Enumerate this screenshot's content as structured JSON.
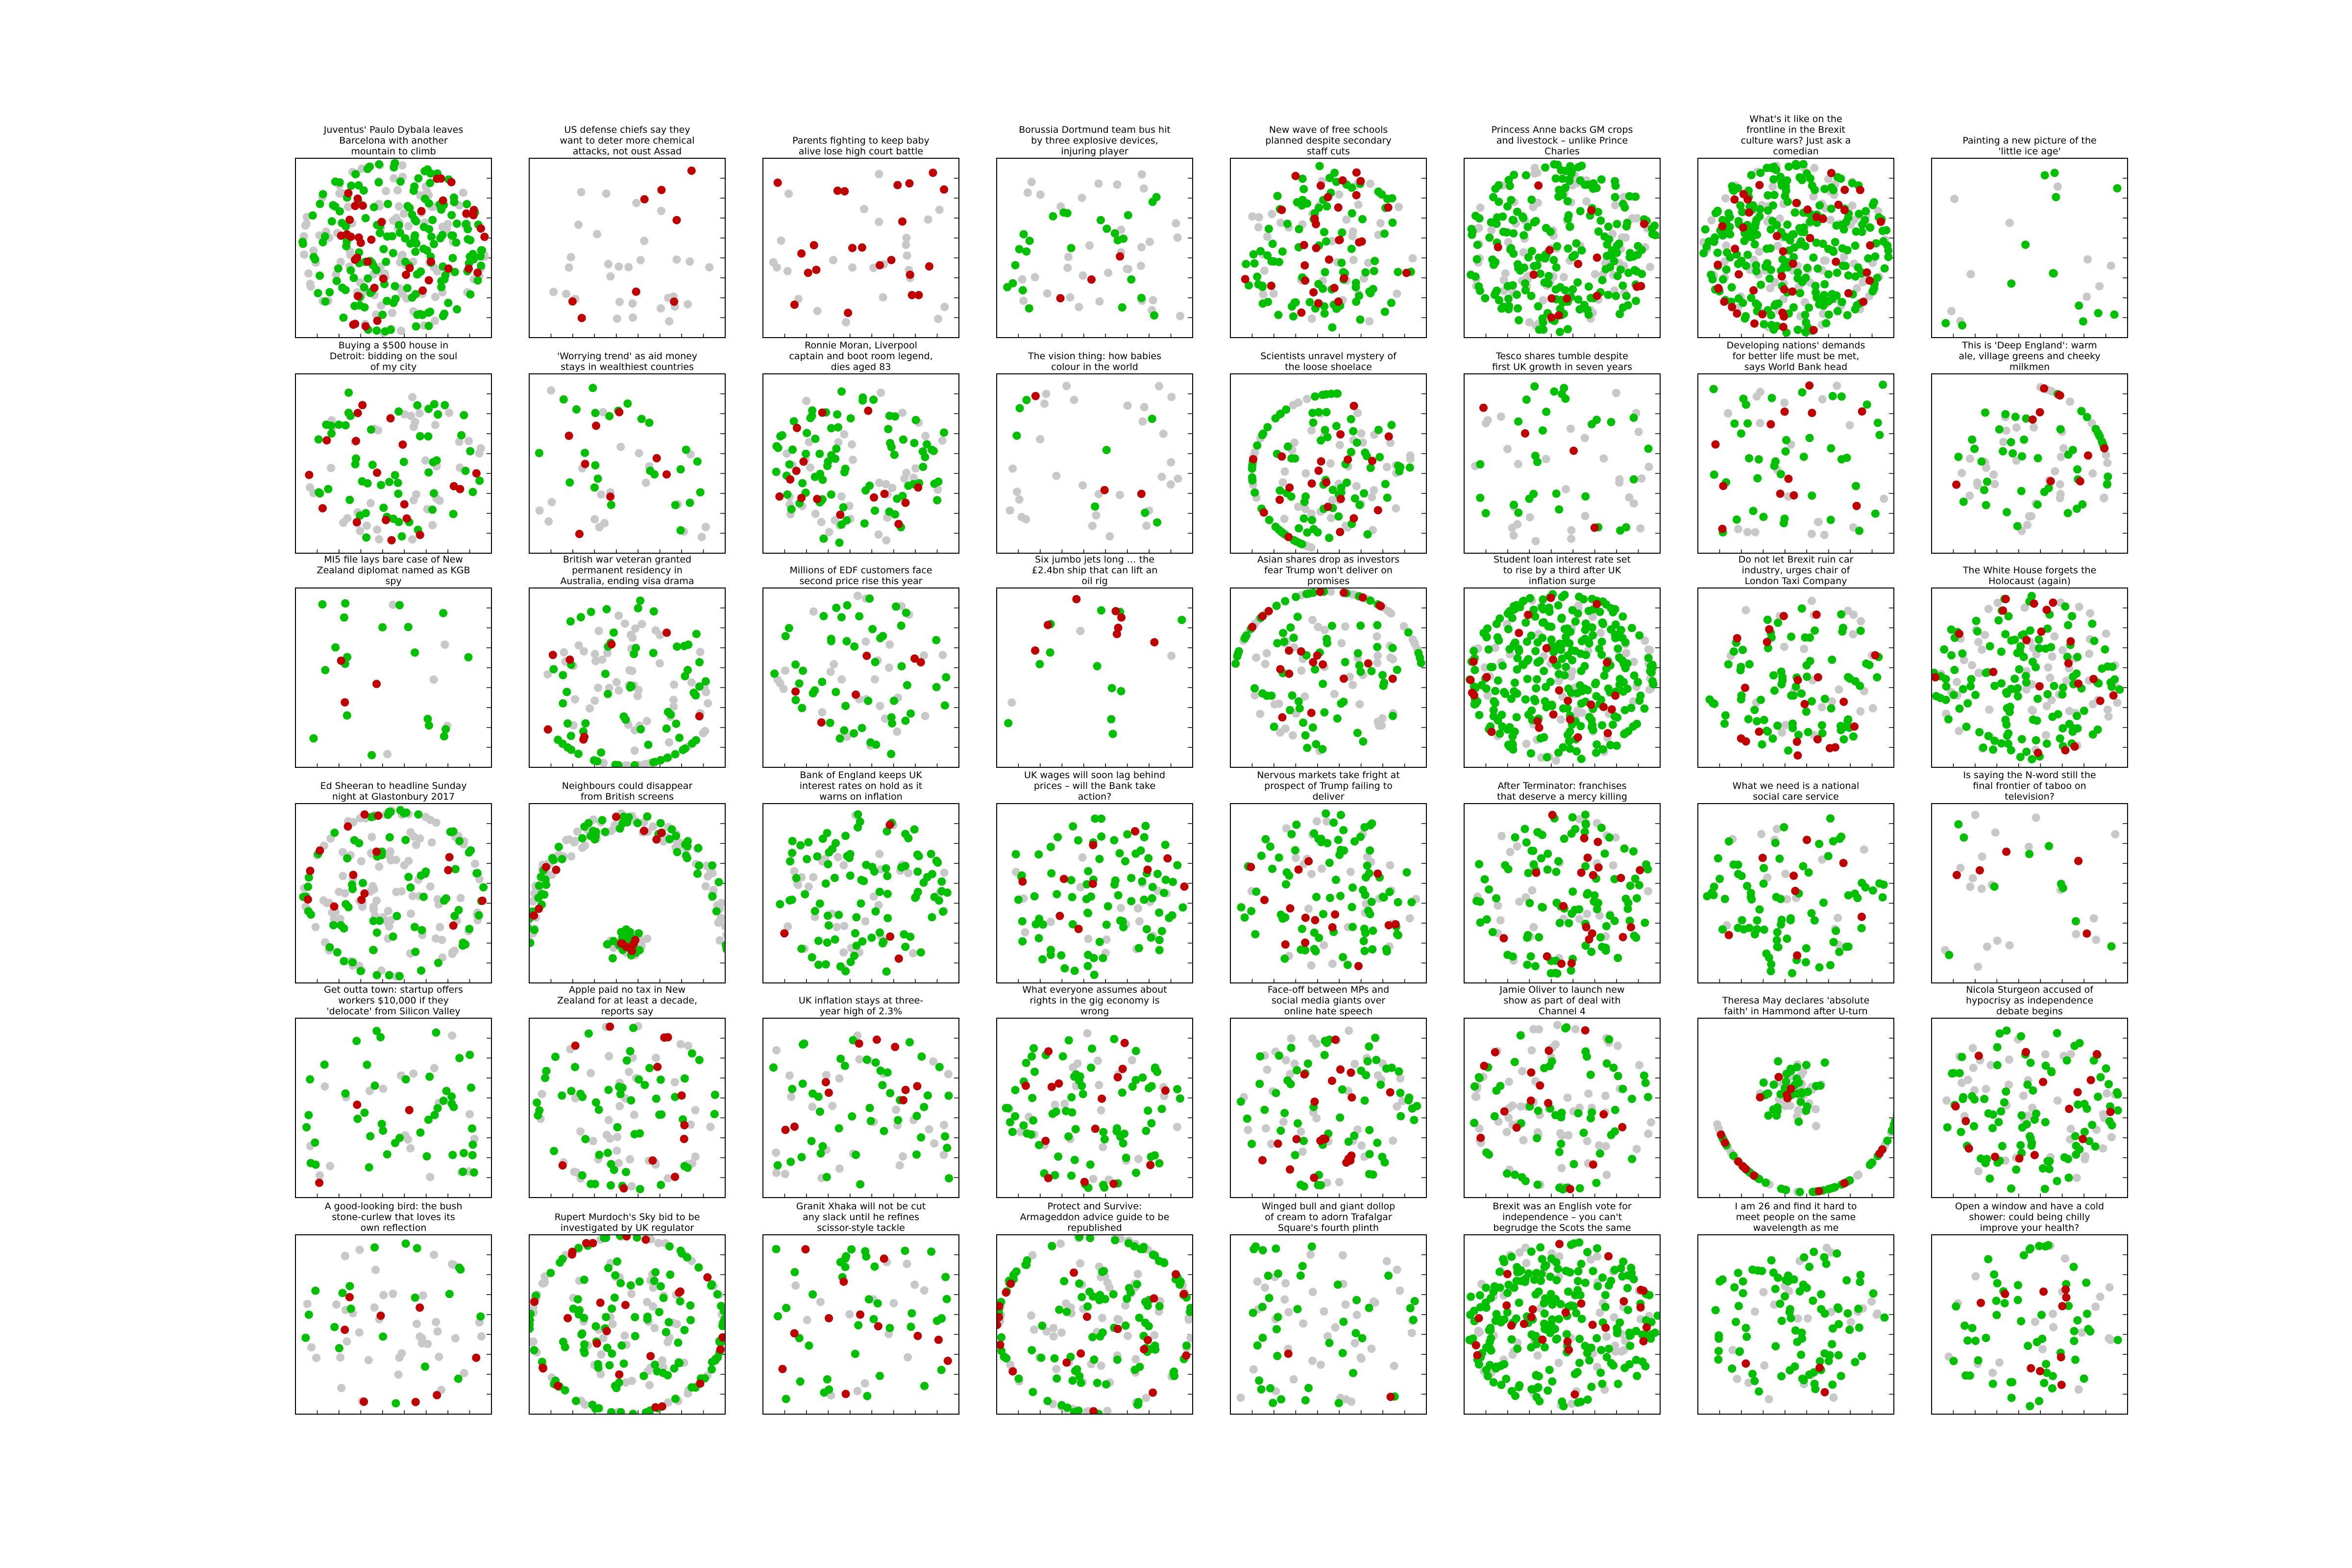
{
  "colors": {
    "positive": "#00c000",
    "negative": "#c00000",
    "neutral": "#c8c8c8"
  },
  "chart_data": {
    "type": "scatter",
    "grid": false,
    "panels": [
      {
        "title": [
          "Juventus' Paulo Dybala leaves",
          "Barcelona with another",
          "mountain to climb"
        ],
        "layout": "dense-ring",
        "counts": {
          "positive": 170,
          "negative": 40,
          "neutral": 110
        }
      },
      {
        "title": [
          "US defense chiefs say they",
          "want to deter more chemical",
          "attacks, not oust Assad"
        ],
        "layout": "sparse",
        "counts": {
          "positive": 0,
          "negative": 8,
          "neutral": 30
        }
      },
      {
        "title": [
          "Parents fighting to keep baby",
          "alive lose high court battle"
        ],
        "layout": "sparse",
        "counts": {
          "positive": 0,
          "negative": 22,
          "neutral": 25
        }
      },
      {
        "title": [
          "Borussia Dortmund team bus hit",
          "by three explosive devices,",
          "injuring player"
        ],
        "layout": "sparse",
        "counts": {
          "positive": 25,
          "negative": 3,
          "neutral": 35
        }
      },
      {
        "title": [
          "New wave of free schools",
          "planned despite secondary",
          "staff cuts"
        ],
        "layout": "medium",
        "counts": {
          "positive": 95,
          "negative": 30,
          "neutral": 45
        }
      },
      {
        "title": [
          "Princess Anne backs GM crops",
          "and livestock – unlike Prince",
          "Charles"
        ],
        "layout": "dense",
        "counts": {
          "positive": 210,
          "negative": 15,
          "neutral": 90
        }
      },
      {
        "title": [
          "What's it like on the",
          "frontline in the Brexit",
          "culture wars? Just ask a",
          "comedian"
        ],
        "layout": "dense-ring",
        "counts": {
          "positive": 260,
          "negative": 45,
          "neutral": 90
        }
      },
      {
        "title": [
          "Painting a new picture of the",
          "'little ice age'"
        ],
        "layout": "sparse",
        "counts": {
          "positive": 14,
          "negative": 0,
          "neutral": 10
        }
      },
      {
        "title": [
          "Buying a $500 house in",
          "Detroit: bidding on the soul",
          "of my city"
        ],
        "layout": "medium",
        "counts": {
          "positive": 55,
          "negative": 18,
          "neutral": 40
        }
      },
      {
        "title": [
          "'Worrying trend' as aid money",
          "stays in wealthiest countries"
        ],
        "layout": "sparse",
        "counts": {
          "positive": 25,
          "negative": 8,
          "neutral": 20
        }
      },
      {
        "title": [
          "Ronnie Moran, Liverpool",
          "captain and boot room legend,",
          "dies aged 83"
        ],
        "layout": "medium",
        "counts": {
          "positive": 80,
          "negative": 15,
          "neutral": 40
        }
      },
      {
        "title": [
          "The vision thing: how babies",
          "colour in the world"
        ],
        "layout": "sparse",
        "counts": {
          "positive": 8,
          "negative": 3,
          "neutral": 30
        }
      },
      {
        "title": [
          "Scientists unravel mystery of",
          "the loose shoelace"
        ],
        "layout": "arc-left",
        "counts": {
          "positive": 90,
          "negative": 20,
          "neutral": 60
        }
      },
      {
        "title": [
          "Tesco shares tumble despite",
          "first UK growth in seven years"
        ],
        "layout": "sparse",
        "counts": {
          "positive": 30,
          "negative": 4,
          "neutral": 30
        }
      },
      {
        "title": [
          "Developing nations' demands",
          "for better life must be met,",
          "says World Bank head"
        ],
        "layout": "sparse",
        "counts": {
          "positive": 40,
          "negative": 12,
          "neutral": 20
        }
      },
      {
        "title": [
          "This is 'Deep England': warm",
          "ale, village greens and cheeky",
          "milkmen"
        ],
        "layout": "arc-right",
        "counts": {
          "positive": 45,
          "negative": 10,
          "neutral": 45
        }
      },
      {
        "title": [
          "MI5 file lays bare case of New",
          "Zealand diplomat named as KGB",
          "spy"
        ],
        "layout": "sparse",
        "counts": {
          "positive": 20,
          "negative": 3,
          "neutral": 5
        }
      },
      {
        "title": [
          "British war veteran granted",
          "permanent residency in",
          "Australia, ending visa drama"
        ],
        "layout": "ring-bottom",
        "counts": {
          "positive": 70,
          "negative": 8,
          "neutral": 70
        }
      },
      {
        "title": [
          "Millions of EDF customers face",
          "second price rise this year"
        ],
        "layout": "medium",
        "counts": {
          "positive": 50,
          "negative": 6,
          "neutral": 30
        }
      },
      {
        "title": [
          "Six jumbo jets long … the",
          "£2.4bn ship that can lift an",
          "oil rig"
        ],
        "layout": "sparse",
        "counts": {
          "positive": 12,
          "negative": 8,
          "neutral": 3
        }
      },
      {
        "title": [
          "Asian shares drop as investors",
          "fear Trump won't deliver on",
          "promises"
        ],
        "layout": "arc-top",
        "counts": {
          "positive": 75,
          "negative": 20,
          "neutral": 70
        }
      },
      {
        "title": [
          "Student loan interest rate set",
          "to rise by a third after UK",
          "inflation surge"
        ],
        "layout": "dense-ring",
        "counts": {
          "positive": 280,
          "negative": 25,
          "neutral": 70
        }
      },
      {
        "title": [
          "Do not let Brexit ruin car",
          "industry, urges chair of",
          "London Taxi Company"
        ],
        "layout": "medium",
        "counts": {
          "positive": 80,
          "negative": 20,
          "neutral": 25
        }
      },
      {
        "title": [
          "The White House forgets the",
          "Holocaust (again)"
        ],
        "layout": "dense",
        "counts": {
          "positive": 130,
          "negative": 20,
          "neutral": 60
        }
      },
      {
        "title": [
          "Ed Sheeran to headline Sunday",
          "night at Glastonbury 2017"
        ],
        "layout": "ring",
        "counts": {
          "positive": 80,
          "negative": 15,
          "neutral": 110
        }
      },
      {
        "title": [
          "Neighbours could disappear",
          "from British screens"
        ],
        "layout": "arch",
        "counts": {
          "positive": 90,
          "negative": 15,
          "neutral": 140
        }
      },
      {
        "title": [
          "Bank of England keeps UK",
          "interest rates on hold as it",
          "warns on inflation"
        ],
        "layout": "medium",
        "counts": {
          "positive": 95,
          "negative": 4,
          "neutral": 35
        }
      },
      {
        "title": [
          "UK wages will soon lag behind",
          "prices – will the Bank take",
          "action?"
        ],
        "layout": "medium",
        "counts": {
          "positive": 85,
          "negative": 10,
          "neutral": 20
        }
      },
      {
        "title": [
          "Nervous markets take fright at",
          "prospect of Trump failing to",
          "deliver"
        ],
        "layout": "medium",
        "counts": {
          "positive": 85,
          "negative": 15,
          "neutral": 30
        }
      },
      {
        "title": [
          "After Terminator: franchises",
          "that deserve a mercy killing"
        ],
        "layout": "medium",
        "counts": {
          "positive": 100,
          "negative": 20,
          "neutral": 30
        }
      },
      {
        "title": [
          "What we need is a national",
          "social care service"
        ],
        "layout": "medium",
        "counts": {
          "positive": 80,
          "negative": 8,
          "neutral": 15
        }
      },
      {
        "title": [
          "Is saying the N-word still the",
          "final frontier of taboo on",
          "television?"
        ],
        "layout": "sparse",
        "counts": {
          "positive": 10,
          "negative": 5,
          "neutral": 20
        }
      },
      {
        "title": [
          "Get outta town: startup offers",
          "workers $10,000 if they",
          "'delocate' from Silicon Valley"
        ],
        "layout": "sparse",
        "counts": {
          "positive": 45,
          "negative": 3,
          "neutral": 20
        }
      },
      {
        "title": [
          "Apple paid no tax in New",
          "Zealand for at least a decade,",
          "reports say"
        ],
        "layout": "ring",
        "counts": {
          "positive": 55,
          "negative": 12,
          "neutral": 45
        }
      },
      {
        "title": [
          "UK inflation stays at three-",
          "year high of 2.3%"
        ],
        "layout": "sparse",
        "counts": {
          "positive": 45,
          "negative": 10,
          "neutral": 30
        }
      },
      {
        "title": [
          "What everyone assumes about",
          "rights in the gig economy is",
          "wrong"
        ],
        "layout": "medium",
        "counts": {
          "positive": 75,
          "negative": 15,
          "neutral": 25
        }
      },
      {
        "title": [
          "Face-off between MPs and",
          "social media giants over",
          "online hate speech"
        ],
        "layout": "medium",
        "counts": {
          "positive": 60,
          "negative": 20,
          "neutral": 40
        }
      },
      {
        "title": [
          "Jamie Oliver to launch new",
          "show as part of deal with",
          "Channel 4"
        ],
        "layout": "ring",
        "counts": {
          "positive": 60,
          "negative": 15,
          "neutral": 65
        }
      },
      {
        "title": [
          "Theresa May declares 'absolute",
          "faith' in Hammond after U-turn"
        ],
        "layout": "u-curve",
        "counts": {
          "positive": 75,
          "negative": 15,
          "neutral": 70
        }
      },
      {
        "title": [
          "Nicola Sturgeon accused of",
          "hypocrisy as independence",
          "debate begins"
        ],
        "layout": "medium",
        "counts": {
          "positive": 90,
          "negative": 15,
          "neutral": 40
        }
      },
      {
        "title": [
          "A good-looking bird: the bush",
          "stone-curlew that loves its",
          "own reflection"
        ],
        "layout": "ring",
        "counts": {
          "positive": 20,
          "negative": 8,
          "neutral": 40
        }
      },
      {
        "title": [
          "Rupert Murdoch's Sky bid to be",
          "investigated by UK regulator"
        ],
        "layout": "ring-strong",
        "counts": {
          "positive": 120,
          "negative": 25,
          "neutral": 80
        }
      },
      {
        "title": [
          "Granit Xhaka will not be cut",
          "any slack until he refines",
          "scissor-style tackle"
        ],
        "layout": "sparse",
        "counts": {
          "positive": 40,
          "negative": 12,
          "neutral": 15
        }
      },
      {
        "title": [
          "Protect and Survive:",
          "Armageddon advice guide to be",
          "republished"
        ],
        "layout": "ring-strong",
        "counts": {
          "positive": 110,
          "negative": 20,
          "neutral": 80
        }
      },
      {
        "title": [
          "Winged bull and giant dollop",
          "of cream to adorn Trafalgar",
          "Square's fourth plinth"
        ],
        "layout": "sparse",
        "counts": {
          "positive": 40,
          "negative": 2,
          "neutral": 40
        }
      },
      {
        "title": [
          "Brexit was an English vote for",
          "independence – you can't",
          "begrudge the Scots the same"
        ],
        "layout": "dense",
        "counts": {
          "positive": 220,
          "negative": 25,
          "neutral": 60
        }
      },
      {
        "title": [
          "I am 26 and find it hard to",
          "meet people on the same",
          "wavelength as me"
        ],
        "layout": "medium",
        "counts": {
          "positive": 90,
          "negative": 3,
          "neutral": 25
        }
      },
      {
        "title": [
          "Open a window and have a cold",
          "shower: could being chilly",
          "improve your health?"
        ],
        "layout": "medium",
        "counts": {
          "positive": 55,
          "negative": 10,
          "neutral": 20
        }
      }
    ]
  }
}
